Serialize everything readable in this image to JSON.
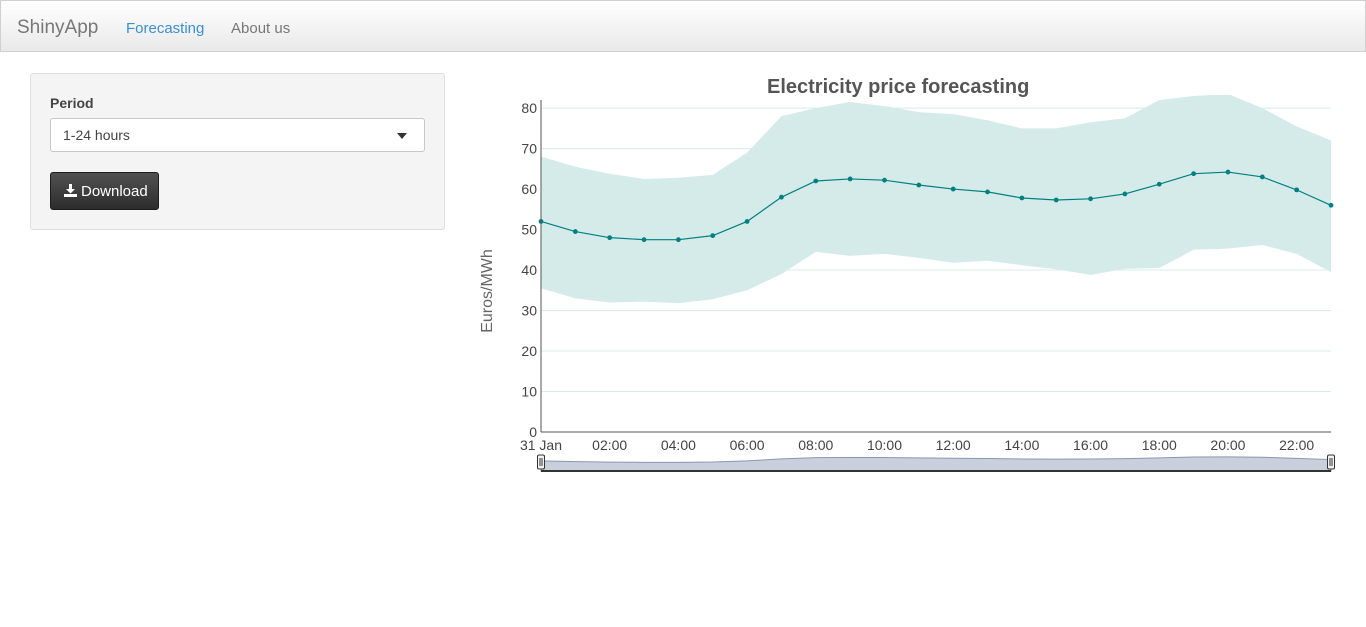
{
  "nav": {
    "brand": "ShinyApp",
    "links": [
      "Forecasting",
      "About us"
    ],
    "active": "Forecasting",
    "active_color": "#3a8fd6"
  },
  "sidebar": {
    "period_label": "Period",
    "period_value": "1-24 hours",
    "download_label": "Download",
    "download_icon": "download-icon"
  },
  "chart_data": {
    "type": "line",
    "title": "Electricity price forecasting",
    "ylabel": "Euros/MWh",
    "xlabel": "",
    "ylim": [
      0,
      82
    ],
    "yticks": [
      0,
      10,
      20,
      30,
      40,
      50,
      60,
      70,
      80
    ],
    "x_tick_labels": [
      "31 Jan",
      "02:00",
      "04:00",
      "06:00",
      "08:00",
      "10:00",
      "12:00",
      "14:00",
      "16:00",
      "18:00",
      "20:00",
      "22:00"
    ],
    "x_hours": [
      0,
      1,
      2,
      3,
      4,
      5,
      6,
      7,
      8,
      9,
      10,
      11,
      12,
      13,
      14,
      15,
      16,
      17,
      18,
      19,
      20,
      21,
      22,
      23
    ],
    "series": [
      {
        "name": "",
        "color": "#008080",
        "values": [
          52,
          49.5,
          48,
          47.5,
          47.5,
          48.5,
          52,
          58,
          62,
          62.5,
          62.2,
          61,
          60,
          59.3,
          57.8,
          57.3,
          57.6,
          58.8,
          61.2,
          63.8,
          64.2,
          63,
          59.8,
          56
        ]
      }
    ],
    "band": {
      "color": "#d5ebe9",
      "upper": [
        68,
        65.5,
        63.8,
        62.5,
        62.8,
        63.5,
        69,
        78,
        80,
        81.5,
        80.5,
        79,
        78.5,
        77,
        75,
        75,
        76.5,
        77.5,
        82,
        83,
        83.5,
        80,
        75.5,
        72
      ],
      "lower": [
        35.5,
        33,
        32,
        32.2,
        31.8,
        32.8,
        35,
        39,
        44.5,
        43.5,
        44,
        43,
        41.8,
        42.3,
        41.2,
        40.2,
        38.8,
        40.3,
        40.5,
        45,
        45.3,
        46.2,
        44,
        39.5
      ]
    },
    "grid": true,
    "navigator": true,
    "navigator_color": "#8a97ad"
  }
}
